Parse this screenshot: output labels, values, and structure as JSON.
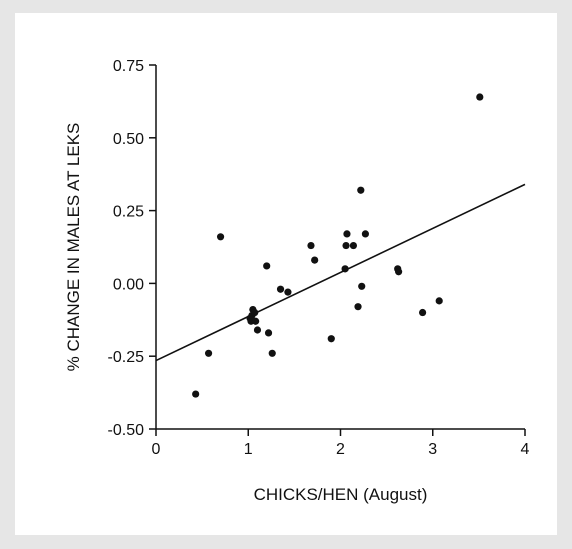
{
  "chart_data": {
    "type": "scatter",
    "title": "",
    "xlabel": "CHICKS/HEN (August)",
    "ylabel": "% CHANGE IN MALES AT LEKS",
    "xlim": [
      0,
      4
    ],
    "ylim": [
      -0.5,
      0.75
    ],
    "x_ticks": [
      "0",
      "1",
      "2",
      "3",
      "4"
    ],
    "y_ticks": [
      "0.75",
      "0.50",
      "0.25",
      "0.00",
      "-0.25",
      "-0.50"
    ],
    "x_tick_values": [
      0,
      1,
      2,
      3,
      4
    ],
    "y_tick_values": [
      0.75,
      0.5,
      0.25,
      0.0,
      -0.25,
      -0.5
    ],
    "grid": false,
    "legend": "none",
    "points": [
      {
        "x": 0.43,
        "y": -0.38
      },
      {
        "x": 0.57,
        "y": -0.24
      },
      {
        "x": 0.7,
        "y": 0.16
      },
      {
        "x": 1.02,
        "y": -0.12
      },
      {
        "x": 1.03,
        "y": -0.13
      },
      {
        "x": 1.04,
        "y": -0.11
      },
      {
        "x": 1.05,
        "y": -0.09
      },
      {
        "x": 1.07,
        "y": -0.1
      },
      {
        "x": 1.08,
        "y": -0.13
      },
      {
        "x": 1.1,
        "y": -0.16
      },
      {
        "x": 1.2,
        "y": 0.06
      },
      {
        "x": 1.22,
        "y": -0.17
      },
      {
        "x": 1.26,
        "y": -0.24
      },
      {
        "x": 1.35,
        "y": -0.02
      },
      {
        "x": 1.43,
        "y": -0.03
      },
      {
        "x": 1.68,
        "y": 0.13
      },
      {
        "x": 1.72,
        "y": 0.08
      },
      {
        "x": 1.9,
        "y": -0.19
      },
      {
        "x": 2.05,
        "y": 0.05
      },
      {
        "x": 2.06,
        "y": 0.13
      },
      {
        "x": 2.07,
        "y": 0.17
      },
      {
        "x": 2.14,
        "y": 0.13
      },
      {
        "x": 2.19,
        "y": -0.08
      },
      {
        "x": 2.22,
        "y": 0.32
      },
      {
        "x": 2.23,
        "y": -0.01
      },
      {
        "x": 2.27,
        "y": 0.17
      },
      {
        "x": 2.62,
        "y": 0.05
      },
      {
        "x": 2.63,
        "y": 0.04
      },
      {
        "x": 2.89,
        "y": -0.1
      },
      {
        "x": 3.07,
        "y": -0.06
      },
      {
        "x": 3.51,
        "y": 0.64
      }
    ],
    "fit_line": {
      "x": [
        0,
        4
      ],
      "y": [
        -0.265,
        0.34
      ]
    }
  },
  "colors": {
    "background": "#e6e6e6",
    "panel": "#ffffff",
    "ink": "#111111"
  }
}
